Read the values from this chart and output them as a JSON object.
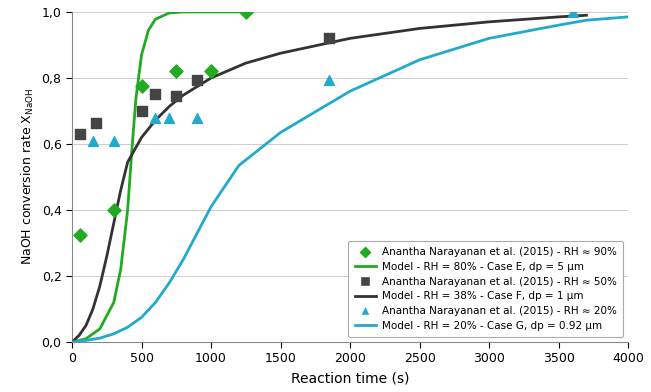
{
  "title": "",
  "xlabel": "Reaction time (s)",
  "ylabel": "NaOH conversion rate X$_{NaOH}$",
  "xlim": [
    0,
    4000
  ],
  "ylim": [
    0.0,
    1.0
  ],
  "xticks": [
    0,
    500,
    1000,
    1500,
    2000,
    2500,
    3000,
    3500,
    4000
  ],
  "yticks": [
    0.0,
    0.2,
    0.4,
    0.6,
    0.8,
    1.0
  ],
  "exp_90_x": [
    60,
    300,
    500,
    750,
    1000,
    1250
  ],
  "exp_90_y": [
    0.325,
    0.4,
    0.775,
    0.82,
    0.82,
    1.0
  ],
  "exp_50_x": [
    60,
    170,
    500,
    600,
    750,
    900,
    1850
  ],
  "exp_50_y": [
    0.63,
    0.665,
    0.7,
    0.75,
    0.745,
    0.795,
    0.92
  ],
  "exp_20_x": [
    150,
    300,
    600,
    700,
    900,
    1850,
    3600
  ],
  "exp_20_y": [
    0.61,
    0.61,
    0.68,
    0.68,
    0.68,
    0.795,
    1.0
  ],
  "model_green_x": [
    0,
    100,
    200,
    300,
    350,
    400,
    430,
    460,
    500,
    550,
    600,
    700,
    800,
    1000,
    1250
  ],
  "model_green_y": [
    0.0,
    0.01,
    0.04,
    0.12,
    0.22,
    0.4,
    0.58,
    0.74,
    0.87,
    0.945,
    0.978,
    0.997,
    1.0,
    1.0,
    1.0
  ],
  "model_black_x": [
    0,
    50,
    100,
    150,
    200,
    250,
    300,
    350,
    400,
    500,
    600,
    700,
    800,
    1000,
    1250,
    1500,
    2000,
    2500,
    3000,
    3500,
    3700
  ],
  "model_black_y": [
    0.0,
    0.02,
    0.05,
    0.1,
    0.17,
    0.26,
    0.36,
    0.46,
    0.545,
    0.62,
    0.672,
    0.714,
    0.748,
    0.8,
    0.845,
    0.875,
    0.92,
    0.95,
    0.97,
    0.985,
    0.99
  ],
  "model_cyan_x": [
    0,
    100,
    200,
    300,
    400,
    500,
    600,
    700,
    800,
    900,
    1000,
    1200,
    1500,
    2000,
    2500,
    3000,
    3500,
    3700,
    4000
  ],
  "model_cyan_y": [
    0.0,
    0.005,
    0.012,
    0.025,
    0.045,
    0.075,
    0.12,
    0.18,
    0.25,
    0.33,
    0.41,
    0.535,
    0.635,
    0.76,
    0.855,
    0.92,
    0.96,
    0.975,
    0.985
  ],
  "color_green": "#22aa22",
  "color_black": "#333333",
  "color_cyan": "#22aacc",
  "color_marker_green": "#22aa22",
  "color_marker_black": "#444444",
  "color_marker_cyan": "#22aacc",
  "legend_labels": [
    "Anantha Narayanan et al. (2015) - RH ≈ 90%",
    "Model - RH = 80% - Case E, dp = 5 μm",
    "Anantha Narayanan et al. (2015) - RH ≈ 50%",
    "Model - RH = 38% - Case F, dp = 1 μm",
    "Anantha Narayanan et al. (2015) - RH ≈ 20%",
    "Model - RH = 20% - Case G, dp = 0.92 μm"
  ],
  "bg_color": "#f5f5f0"
}
